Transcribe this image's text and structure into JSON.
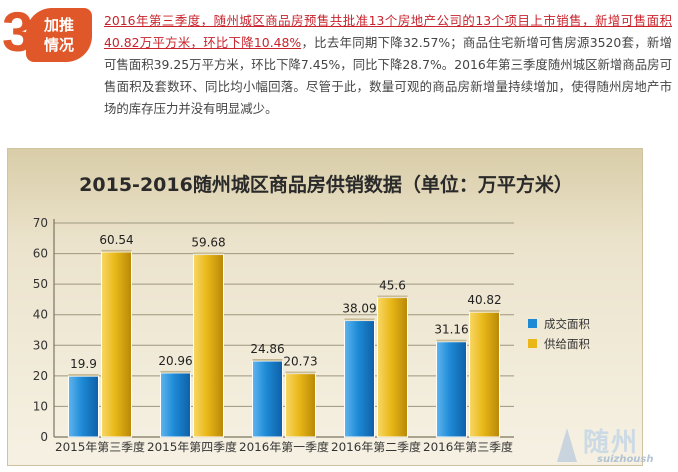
{
  "header": {
    "badge_number": "3",
    "badge_line1": "加推",
    "badge_line2": "情况",
    "highlight_text": "2016年第三季度，随州城区商品房预售共批准13个房地产公司的13个项目上市销售，新增可售面积40.82万平方米，环比下降10.48%",
    "body_text": "，比去年同期下降32.57%；商品住宅新增可售房源3520套，新增可售面积39.25万平方米，环比下降7.45%，同比下降28.7%。2016年第三季度随州城区新增商品房可售面积及套数环、同比均小幅回落。尽管于此，数量可观的商品房新增量持续增加，使得随州房地产市场的库存压力并没有明显减少。"
  },
  "watermark": {
    "text": "随州",
    "sub": "suizhoush"
  },
  "colors": {
    "accent": "#e0572a",
    "highlight": "#c8232c",
    "blue": "#1e8ad6",
    "gold": "#e9b818"
  },
  "chart_data": {
    "type": "bar",
    "title": "2015-2016随州城区商品房供销数据（单位：万平方米）",
    "categories": [
      "2015年第三季度",
      "2015年第四季度",
      "2016年第一季度",
      "2016年第二季度",
      "2016年第三季度"
    ],
    "series": [
      {
        "name": "成交面积",
        "values": [
          19.9,
          20.96,
          24.86,
          38.09,
          31.16
        ],
        "color": "#1e8ad6"
      },
      {
        "name": "供给面积",
        "values": [
          60.54,
          59.68,
          20.73,
          45.6,
          40.82
        ],
        "color": "#e9b818"
      }
    ],
    "ylim": [
      0,
      70
    ],
    "yticks": [
      0,
      10,
      20,
      30,
      40,
      50,
      60,
      70
    ],
    "grid": true,
    "legend": "right"
  }
}
